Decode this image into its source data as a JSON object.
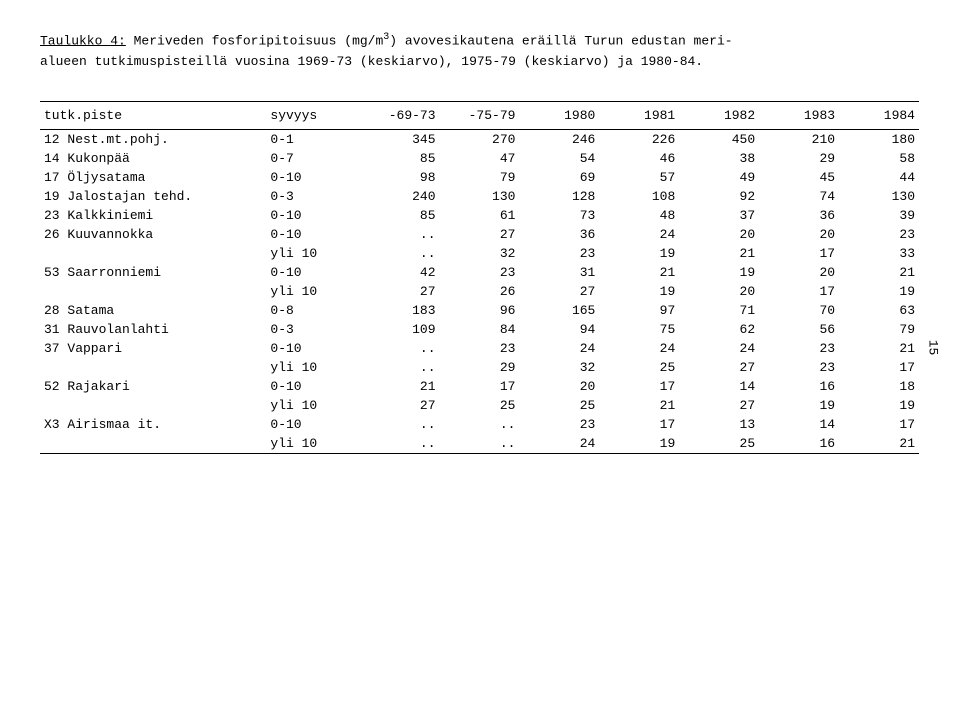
{
  "title_prefix": "Taulukko 4:",
  "title_rest": " Meriveden fosforipitoisuus (mg/m",
  "title_sup": "3",
  "title_rest2": ") avovesikautena eräillä Turun edustan meri-",
  "title_line2": "alueen tutkimuspisteillä vuosina 1969-73 (keskiarvo), 1975-79 (keskiarvo) ja 1980-84.",
  "page_number": "15",
  "header": {
    "c0": "tutk.piste",
    "c1": "syvyys",
    "c2": "-69-73",
    "c3": "-75-79",
    "c4": "1980",
    "c5": "1981",
    "c6": "1982",
    "c7": "1983",
    "c8": "1984"
  },
  "rows": [
    {
      "label": "12 Nest.mt.pohj.",
      "depth": "0-1",
      "v": [
        "345",
        "270",
        "246",
        "226",
        "450",
        "210",
        "180"
      ]
    },
    {
      "label": "14 Kukonpää",
      "depth": "0-7",
      "v": [
        "85",
        "47",
        "54",
        "46",
        "38",
        "29",
        "58"
      ]
    },
    {
      "label": "17 Öljysatama",
      "depth": "0-10",
      "v": [
        "98",
        "79",
        "69",
        "57",
        "49",
        "45",
        "44"
      ]
    },
    {
      "label": "19 Jalostajan tehd.",
      "depth": "0-3",
      "v": [
        "240",
        "130",
        "128",
        "108",
        "92",
        "74",
        "130"
      ]
    },
    {
      "label": "23 Kalkkiniemi",
      "depth": "0-10",
      "v": [
        "85",
        "61",
        "73",
        "48",
        "37",
        "36",
        "39"
      ]
    },
    {
      "label": "26 Kuuvannokka",
      "depth": "0-10",
      "v": [
        "..",
        "27",
        "36",
        "24",
        "20",
        "20",
        "23"
      ]
    },
    {
      "label": "",
      "depth": "yli 10",
      "v": [
        "..",
        "32",
        "23",
        "19",
        "21",
        "17",
        "33"
      ]
    },
    {
      "label": "53 Saarronniemi",
      "depth": "0-10",
      "v": [
        "42",
        "23",
        "31",
        "21",
        "19",
        "20",
        "21"
      ]
    },
    {
      "label": "",
      "depth": "yli 10",
      "v": [
        "27",
        "26",
        "27",
        "19",
        "20",
        "17",
        "19"
      ]
    },
    {
      "label": "28 Satama",
      "depth": "0-8",
      "v": [
        "183",
        "96",
        "165",
        "97",
        "71",
        "70",
        "63"
      ]
    },
    {
      "label": "31 Rauvolanlahti",
      "depth": "0-3",
      "v": [
        "109",
        "84",
        "94",
        "75",
        "62",
        "56",
        "79"
      ]
    },
    {
      "label": "37 Vappari",
      "depth": "0-10",
      "v": [
        "..",
        "23",
        "24",
        "24",
        "24",
        "23",
        "21"
      ]
    },
    {
      "label": "",
      "depth": "yli 10",
      "v": [
        "..",
        "29",
        "32",
        "25",
        "27",
        "23",
        "17"
      ]
    },
    {
      "label": "52 Rajakari",
      "depth": "0-10",
      "v": [
        "21",
        "17",
        "20",
        "17",
        "14",
        "16",
        "18"
      ]
    },
    {
      "label": "",
      "depth": "yli 10",
      "v": [
        "27",
        "25",
        "25",
        "21",
        "27",
        "19",
        "19"
      ]
    },
    {
      "label": "X3 Airismaa it.",
      "depth": "0-10",
      "v": [
        "..",
        "..",
        "23",
        "17",
        "13",
        "14",
        "17"
      ]
    },
    {
      "label": "",
      "depth": "yli 10",
      "v": [
        "..",
        "..",
        "24",
        "19",
        "25",
        "16",
        "21"
      ]
    }
  ]
}
